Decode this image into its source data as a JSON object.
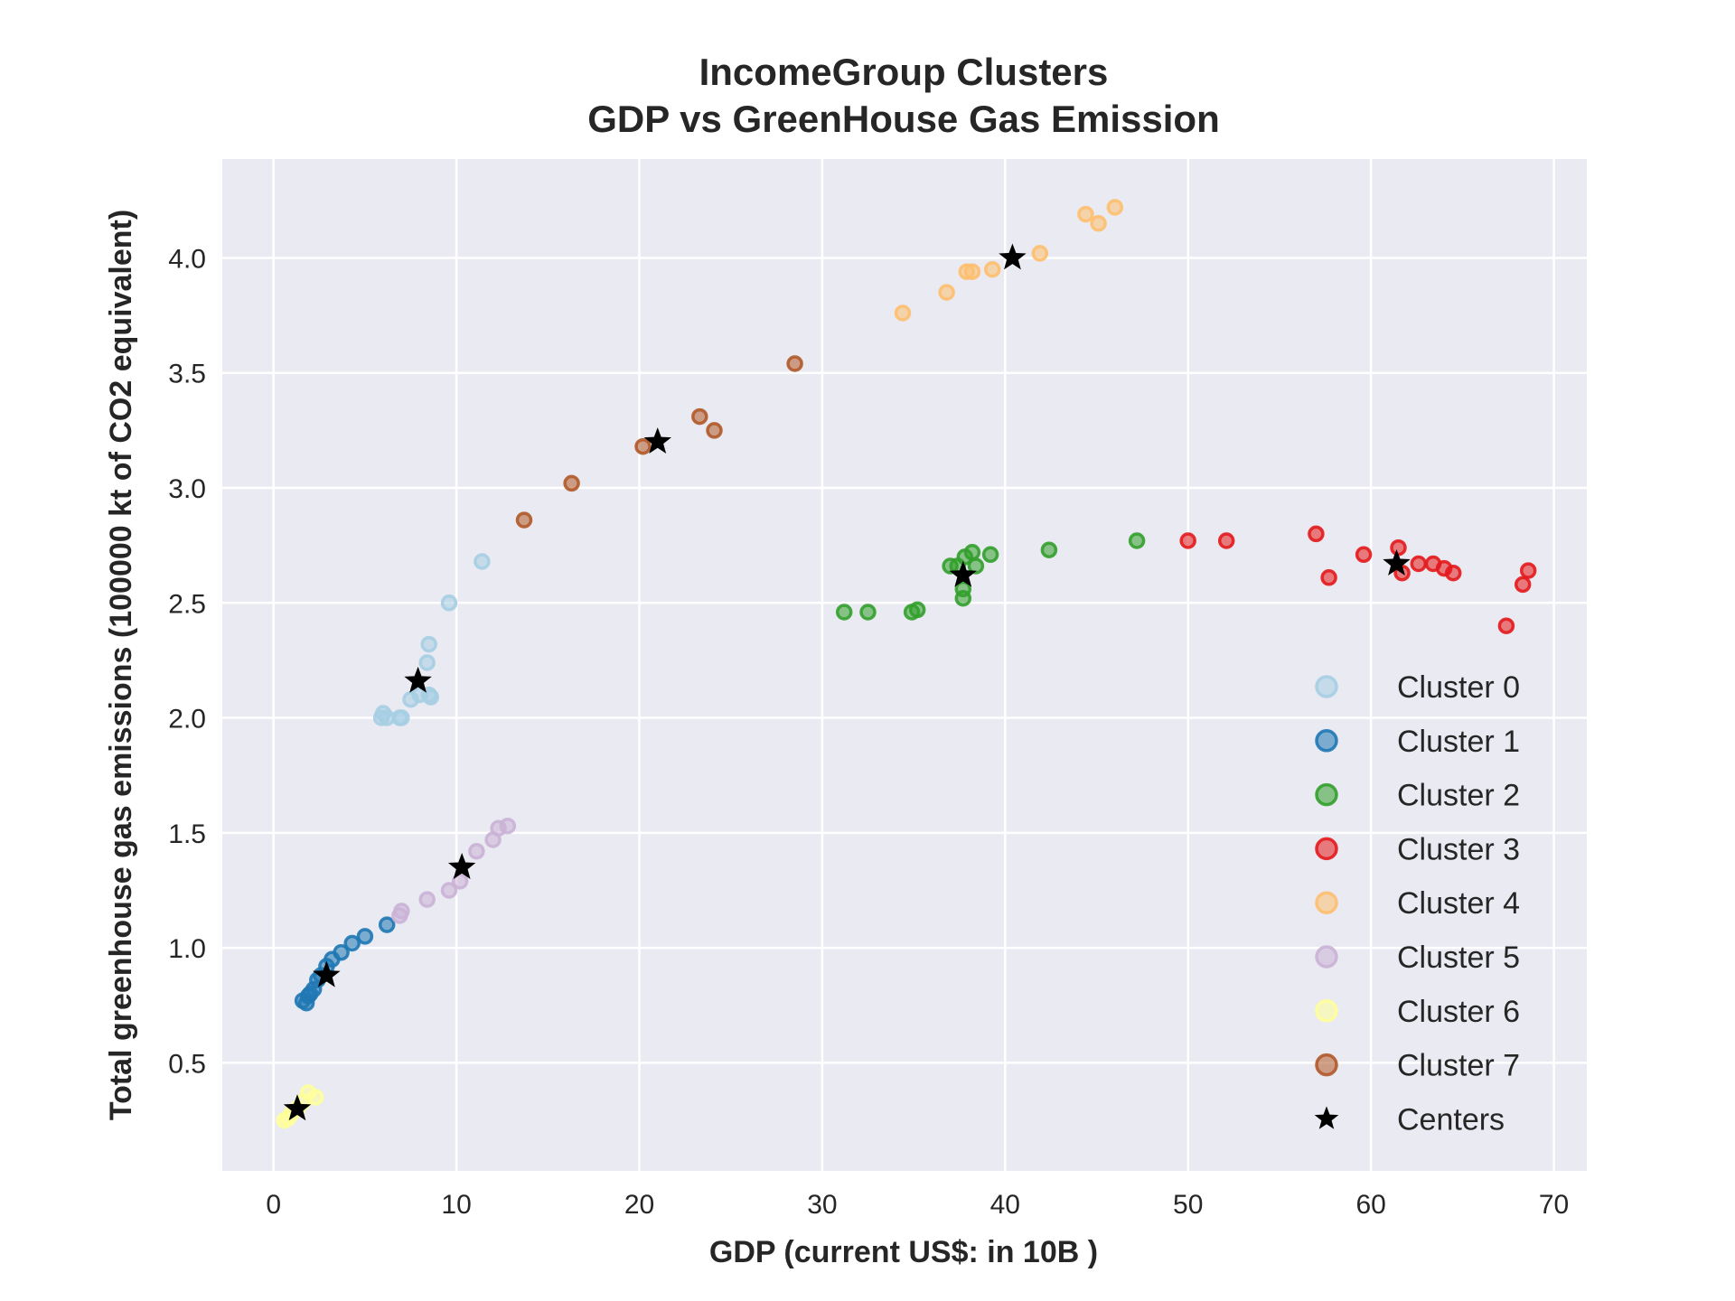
{
  "chart_data": {
    "type": "scatter",
    "title": [
      "IncomeGroup Clusters",
      "GDP vs GreenHouse Gas Emission"
    ],
    "xlabel": "GDP (current US$: in 10B )",
    "ylabel": "Total greenhouse gas emissions (100000 kt of CO2 equivalent)",
    "xlim": [
      -2.8,
      71.8
    ],
    "ylim": [
      0.03,
      4.43
    ],
    "xticks": [
      0,
      10,
      20,
      30,
      40,
      50,
      60,
      70
    ],
    "yticks": [
      0.5,
      1.0,
      1.5,
      2.0,
      2.5,
      3.0,
      3.5,
      4.0
    ],
    "ytick_labels": [
      "0.5",
      "1.0",
      "1.5",
      "2.0",
      "2.5",
      "3.0",
      "3.5",
      "4.0"
    ],
    "grid": true,
    "legend_position": "lower-right",
    "series": [
      {
        "name": "Cluster 0",
        "color": "#a6cee3",
        "points": [
          [
            5.9,
            2.0
          ],
          [
            6.0,
            2.02
          ],
          [
            6.2,
            2.0
          ],
          [
            6.9,
            2.0
          ],
          [
            7.0,
            2.0
          ],
          [
            7.5,
            2.08
          ],
          [
            8.0,
            2.1
          ],
          [
            8.4,
            2.24
          ],
          [
            8.5,
            2.32
          ],
          [
            8.5,
            2.1
          ],
          [
            8.6,
            2.09
          ],
          [
            9.6,
            2.5
          ],
          [
            11.4,
            2.68
          ]
        ]
      },
      {
        "name": "Cluster 1",
        "color": "#1f78b4",
        "points": [
          [
            1.6,
            0.77
          ],
          [
            1.8,
            0.76
          ],
          [
            1.9,
            0.79
          ],
          [
            2.0,
            0.8
          ],
          [
            2.2,
            0.82
          ],
          [
            2.4,
            0.86
          ],
          [
            2.6,
            0.88
          ],
          [
            2.9,
            0.92
          ],
          [
            3.2,
            0.95
          ],
          [
            3.7,
            0.98
          ],
          [
            4.3,
            1.02
          ],
          [
            5.0,
            1.05
          ],
          [
            6.2,
            1.1
          ]
        ]
      },
      {
        "name": "Cluster 2",
        "color": "#33a02c",
        "points": [
          [
            31.2,
            2.46
          ],
          [
            32.5,
            2.46
          ],
          [
            34.9,
            2.46
          ],
          [
            35.2,
            2.47
          ],
          [
            37.0,
            2.66
          ],
          [
            37.4,
            2.66
          ],
          [
            37.7,
            2.52
          ],
          [
            37.7,
            2.56
          ],
          [
            37.8,
            2.7
          ],
          [
            38.2,
            2.72
          ],
          [
            38.4,
            2.66
          ],
          [
            39.2,
            2.71
          ],
          [
            42.4,
            2.73
          ],
          [
            47.2,
            2.77
          ]
        ]
      },
      {
        "name": "Cluster 3",
        "color": "#e31a1c",
        "points": [
          [
            50.0,
            2.77
          ],
          [
            52.1,
            2.77
          ],
          [
            57.0,
            2.8
          ],
          [
            57.7,
            2.61
          ],
          [
            59.6,
            2.71
          ],
          [
            61.5,
            2.74
          ],
          [
            61.7,
            2.63
          ],
          [
            62.6,
            2.67
          ],
          [
            63.4,
            2.67
          ],
          [
            64.0,
            2.65
          ],
          [
            64.5,
            2.63
          ],
          [
            67.4,
            2.4
          ],
          [
            68.3,
            2.58
          ],
          [
            68.6,
            2.64
          ]
        ]
      },
      {
        "name": "Cluster 4",
        "color": "#fdbf6f",
        "points": [
          [
            34.4,
            3.76
          ],
          [
            36.8,
            3.85
          ],
          [
            37.9,
            3.94
          ],
          [
            38.2,
            3.94
          ],
          [
            39.3,
            3.95
          ],
          [
            41.9,
            4.02
          ],
          [
            44.4,
            4.19
          ],
          [
            45.1,
            4.15
          ],
          [
            46.0,
            4.22
          ]
        ]
      },
      {
        "name": "Cluster 5",
        "color": "#cab2d6",
        "points": [
          [
            6.9,
            1.14
          ],
          [
            7.0,
            1.16
          ],
          [
            8.4,
            1.21
          ],
          [
            9.6,
            1.25
          ],
          [
            10.2,
            1.29
          ],
          [
            11.1,
            1.42
          ],
          [
            12.0,
            1.47
          ],
          [
            12.3,
            1.52
          ],
          [
            12.8,
            1.53
          ]
        ]
      },
      {
        "name": "Cluster 6",
        "color": "#ffff99",
        "points": [
          [
            0.6,
            0.25
          ],
          [
            0.8,
            0.26
          ],
          [
            1.0,
            0.28
          ],
          [
            1.3,
            0.3
          ],
          [
            1.6,
            0.33
          ],
          [
            1.9,
            0.37
          ],
          [
            2.3,
            0.35
          ]
        ]
      },
      {
        "name": "Cluster 7",
        "color": "#b15928",
        "points": [
          [
            13.7,
            2.86
          ],
          [
            16.3,
            3.02
          ],
          [
            20.2,
            3.18
          ],
          [
            23.3,
            3.31
          ],
          [
            24.1,
            3.25
          ],
          [
            28.5,
            3.54
          ]
        ]
      }
    ],
    "centers": {
      "name": "Centers",
      "color": "#000000",
      "points": [
        [
          7.9,
          2.16
        ],
        [
          2.9,
          0.88
        ],
        [
          37.7,
          2.62
        ],
        [
          61.4,
          2.67
        ],
        [
          40.4,
          4.0
        ],
        [
          10.3,
          1.35
        ],
        [
          1.3,
          0.3
        ],
        [
          21.0,
          3.2
        ]
      ]
    }
  }
}
